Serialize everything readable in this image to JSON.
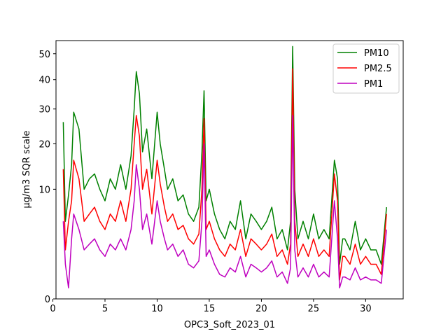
{
  "chart_data": {
    "type": "line",
    "title": "",
    "xlabel": "OPC3_Soft_2023_01",
    "ylabel": "µg/m3 SQR scale",
    "y_scale": "sqrt",
    "xlim": [
      0.3,
      33.6
    ],
    "ylim": [
      0,
      55.5
    ],
    "x_ticks": [
      0,
      5,
      10,
      15,
      20,
      25,
      30
    ],
    "y_ticks": [
      0,
      10,
      20,
      30,
      40,
      50
    ],
    "grid": false,
    "legend_position": "top-right",
    "series": [
      {
        "name": "PM10",
        "color": "#008000",
        "x": [
          1,
          1.2,
          1.5,
          1.8,
          2.0,
          2.5,
          3.0,
          3.5,
          4.0,
          4.5,
          5.0,
          5.5,
          6.0,
          6.5,
          7.0,
          7.5,
          7.8,
          8.0,
          8.3,
          8.6,
          9.0,
          9.5,
          10.0,
          10.3,
          10.7,
          11.0,
          11.5,
          12.0,
          12.5,
          13.0,
          13.5,
          14.0,
          14.3,
          14.5,
          14.7,
          15.0,
          15.5,
          16.0,
          16.5,
          17.0,
          17.5,
          18.0,
          18.5,
          19.0,
          19.5,
          20.0,
          20.5,
          21.0,
          21.5,
          22.0,
          22.5,
          22.8,
          23.0,
          23.2,
          23.5,
          24.0,
          24.5,
          25.0,
          25.5,
          26.0,
          26.5,
          27.0,
          27.3,
          27.5,
          27.8,
          28.0,
          28.5,
          29.0,
          29.5,
          30.0,
          30.5,
          31.0,
          31.5,
          32.0
        ],
        "values": [
          26,
          5,
          9,
          15,
          29,
          24,
          10,
          12,
          13,
          10,
          8,
          12,
          10,
          15,
          10,
          17,
          30,
          43,
          35,
          18,
          24,
          12,
          29,
          20,
          14,
          10,
          12,
          8,
          9,
          6,
          5,
          7,
          18,
          36,
          8,
          10,
          6,
          4,
          3,
          5,
          4,
          8,
          3,
          6,
          5,
          4,
          5,
          7,
          3,
          4,
          2,
          5,
          53,
          10,
          3,
          5,
          3,
          6,
          3,
          4,
          3,
          16,
          12,
          1,
          3,
          3,
          2,
          5,
          2,
          3,
          2,
          2,
          1,
          7
        ]
      },
      {
        "name": "PM2.5",
        "color": "#ff0000",
        "x": [
          1,
          1.2,
          1.5,
          1.8,
          2.0,
          2.5,
          3.0,
          3.5,
          4.0,
          4.5,
          5.0,
          5.5,
          6.0,
          6.5,
          7.0,
          7.5,
          7.8,
          8.0,
          8.3,
          8.6,
          9.0,
          9.5,
          10.0,
          10.3,
          10.7,
          11.0,
          11.5,
          12.0,
          12.5,
          13.0,
          13.5,
          14.0,
          14.3,
          14.5,
          14.7,
          15.0,
          15.5,
          16.0,
          16.5,
          17.0,
          17.5,
          18.0,
          18.5,
          19.0,
          19.5,
          20.0,
          20.5,
          21.0,
          21.5,
          22.0,
          22.5,
          22.8,
          23.0,
          23.2,
          23.5,
          24.0,
          24.5,
          25.0,
          25.5,
          26.0,
          26.5,
          27.0,
          27.3,
          27.5,
          27.8,
          28.0,
          28.5,
          29.0,
          29.5,
          30.0,
          30.5,
          31.0,
          31.5,
          32.0
        ],
        "values": [
          14,
          2,
          5,
          8,
          16,
          12,
          5,
          6,
          7,
          5,
          4,
          6,
          5,
          8,
          5,
          10,
          20,
          28,
          22,
          10,
          14,
          6,
          16,
          11,
          7,
          5,
          6,
          4,
          4.5,
          3,
          2.5,
          3.5,
          10,
          27,
          4,
          5,
          3,
          2,
          1.5,
          2.5,
          2,
          4,
          1.5,
          3,
          2.5,
          2,
          2.5,
          3.5,
          1.5,
          2,
          1,
          2.5,
          44,
          5,
          1.5,
          2.5,
          1.5,
          3,
          1.5,
          2,
          1.5,
          13,
          8,
          0.3,
          1.5,
          1.5,
          1,
          2.5,
          1,
          1.5,
          1,
          1,
          0.5,
          6
        ]
      },
      {
        "name": "PM1",
        "color": "#bf00bf",
        "x": [
          1,
          1.2,
          1.5,
          1.8,
          2.0,
          2.5,
          3.0,
          3.5,
          4.0,
          4.5,
          5.0,
          5.5,
          6.0,
          6.5,
          7.0,
          7.5,
          7.8,
          8.0,
          8.3,
          8.6,
          9.0,
          9.5,
          10.0,
          10.3,
          10.7,
          11.0,
          11.5,
          12.0,
          12.5,
          13.0,
          13.5,
          14.0,
          14.3,
          14.5,
          14.7,
          15.0,
          15.5,
          16.0,
          16.5,
          17.0,
          17.5,
          18.0,
          18.5,
          19.0,
          19.5,
          20.0,
          20.5,
          21.0,
          21.5,
          22.0,
          22.5,
          22.8,
          23.0,
          23.2,
          23.5,
          24.0,
          24.5,
          25.0,
          25.5,
          26.0,
          26.5,
          27.0,
          27.3,
          27.5,
          27.8,
          28.0,
          28.5,
          29.0,
          29.5,
          30.0,
          30.5,
          31.0,
          31.5,
          32.0
        ],
        "values": [
          5,
          1,
          0.1,
          3,
          6,
          4,
          2,
          2.5,
          3,
          2,
          1.5,
          2.5,
          2,
          3,
          2,
          4,
          8,
          15,
          10,
          4,
          6,
          2.5,
          8,
          5,
          3,
          2,
          2.5,
          1.5,
          2,
          1,
          0.8,
          1.2,
          5,
          20,
          1.5,
          2,
          1,
          0.5,
          0.4,
          0.8,
          0.6,
          1.5,
          0.4,
          1,
          0.8,
          0.6,
          0.8,
          1.2,
          0.4,
          0.6,
          0.2,
          0.8,
          28,
          2,
          0.4,
          0.8,
          0.4,
          1,
          0.4,
          0.6,
          0.4,
          8,
          3,
          0.1,
          0.4,
          0.4,
          0.3,
          0.8,
          0.3,
          0.4,
          0.3,
          0.3,
          0.2,
          4
        ]
      }
    ]
  }
}
